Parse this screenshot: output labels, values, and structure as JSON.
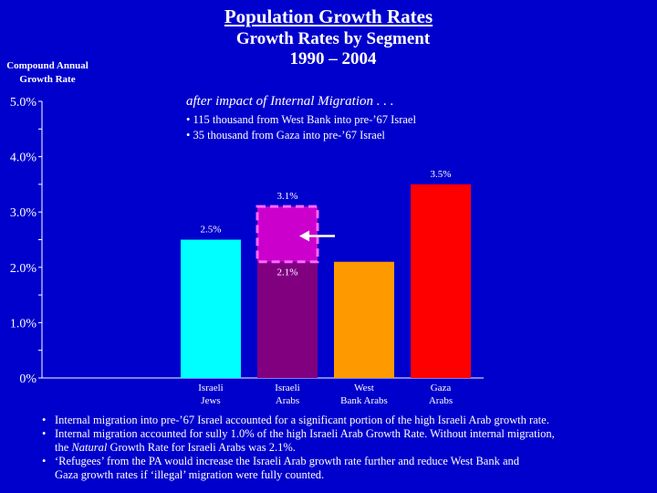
{
  "header": {
    "title": "Population Growth Rates",
    "subtitle_line1": "Growth Rates by Segment",
    "subtitle_line2": "1990 – 2004"
  },
  "y_axis_label": {
    "line1": "Compound Annual",
    "line2": "Growth Rate"
  },
  "annotation": {
    "heading": "after impact of Internal Migration . . .",
    "lines": [
      "• 115 thousand from West Bank into pre-’67 Israel",
      "• 35 thousand from Gaza into pre-’67 Israel"
    ]
  },
  "chart_data": {
    "type": "bar",
    "title": "Growth Rates by Segment 1990 – 2004",
    "ylabel": "Compound Annual Growth Rate",
    "ylim": [
      0,
      5
    ],
    "y_ticks": [
      "0%",
      "1.0%",
      "2.0%",
      "3.0%",
      "4.0%",
      "5.0%"
    ],
    "categories": [
      {
        "line1": "Israeli",
        "line2": "Jews"
      },
      {
        "line1": "Israeli",
        "line2": "Arabs"
      },
      {
        "line1": "West",
        "line2": "Bank Arabs"
      },
      {
        "line1": "Gaza",
        "line2": "Arabs"
      }
    ],
    "values": [
      2.5,
      2.1,
      2.1,
      3.5
    ],
    "value_labels": [
      "2.5%",
      "2.1%",
      "",
      "3.5%"
    ],
    "colors": [
      "#00ffff",
      "#800080",
      "#ff9900",
      "#ff0000"
    ],
    "migration_overlay": {
      "category_index": 1,
      "from": 2.1,
      "to": 3.1,
      "label": "3.1%",
      "color": "#cc00cc",
      "border_color": "#ff66ff"
    }
  },
  "footnotes": [
    {
      "bullet": "•",
      "text": "Internal migration into pre-’67 Israel accounted for a significant portion of the high Israeli Arab growth rate."
    },
    {
      "bullet": "•",
      "text": "Internal migration accounted for sully 1.0% of the high Israeli Arab Growth Rate.  Without internal migration,",
      "cont_pre": "the ",
      "cont_italic": "Natural",
      "cont_post": " Growth Rate for Israeli Arabs was 2.1%."
    },
    {
      "bullet": "•",
      "text": "‘Refugees’ from the PA would increase the Israeli Arab growth rate further and reduce West Bank and",
      "cont": "Gaza growth rates if ‘illegal’ migration were fully counted."
    }
  ]
}
